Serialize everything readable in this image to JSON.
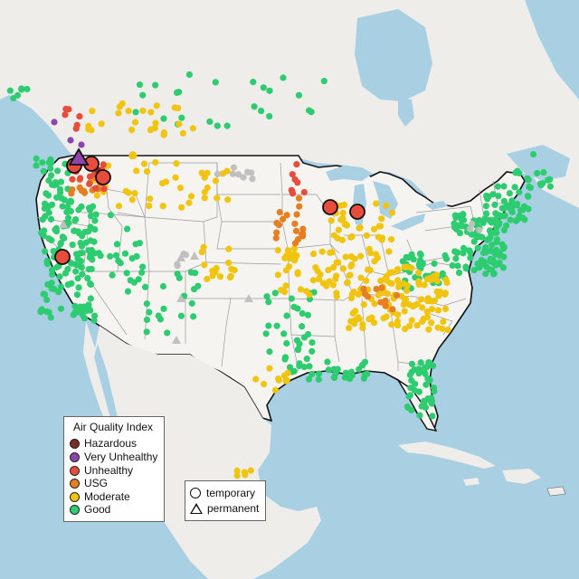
{
  "legend": {
    "title": "Air Quality Index",
    "items": [
      {
        "label": "Hazardous",
        "color": "#7e2a25"
      },
      {
        "label": "Very Unhealthy",
        "color": "#8e44ad"
      },
      {
        "label": "Unhealthy",
        "color": "#e74c3c"
      },
      {
        "label": "USG",
        "color": "#e67e22"
      },
      {
        "label": "Moderate",
        "color": "#f1c40f"
      },
      {
        "label": "Good",
        "color": "#2ecc71"
      }
    ]
  },
  "type_legend": {
    "items": [
      {
        "label": "temporary",
        "symbol": "circle"
      },
      {
        "label": "permanent",
        "symbol": "triangle"
      }
    ]
  },
  "colors": {
    "water": "#a9cfe3",
    "land": "#f1efec",
    "us_land": "#f6f4f1",
    "no_data": "#c0c0c0"
  }
}
